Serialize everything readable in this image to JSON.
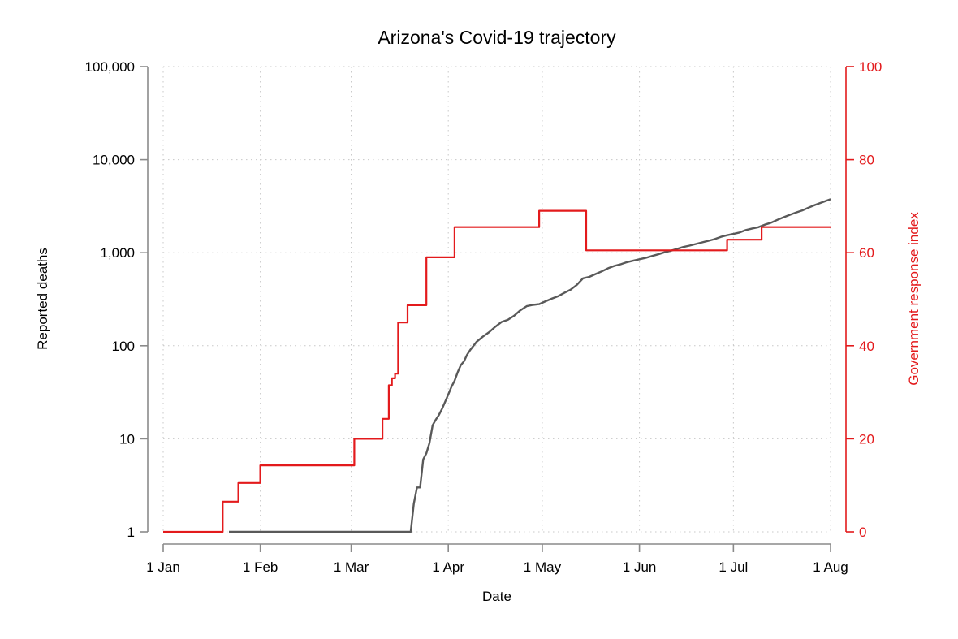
{
  "chart_data": {
    "type": "line",
    "title": "Arizona's Covid-19 trajectory",
    "xlabel": "Date",
    "x_ticks": [
      {
        "label": "1 Jan",
        "date": "2020-01-01"
      },
      {
        "label": "1 Feb",
        "date": "2020-02-01"
      },
      {
        "label": "1 Mar",
        "date": "2020-03-01"
      },
      {
        "label": "1 Apr",
        "date": "2020-04-01"
      },
      {
        "label": "1 May",
        "date": "2020-05-01"
      },
      {
        "label": "1 Jun",
        "date": "2020-06-01"
      },
      {
        "label": "1 Jul",
        "date": "2020-07-01"
      },
      {
        "label": "1 Aug",
        "date": "2020-08-01"
      }
    ],
    "xlim": [
      "2020-01-01",
      "2020-08-01"
    ],
    "y_left": {
      "label": "Reported deaths",
      "scale": "log",
      "ylim": [
        1,
        100000
      ],
      "ticks": [
        {
          "label": "1",
          "value": 1
        },
        {
          "label": "10",
          "value": 10
        },
        {
          "label": "100",
          "value": 100
        },
        {
          "label": "1,000",
          "value": 1000
        },
        {
          "label": "10,000",
          "value": 10000
        },
        {
          "label": "100,000",
          "value": 100000
        }
      ],
      "color": "#8a8a8a"
    },
    "y_right": {
      "label": "Government response index",
      "scale": "linear",
      "ylim": [
        0,
        100
      ],
      "ticks": [
        {
          "label": "0",
          "value": 0
        },
        {
          "label": "20",
          "value": 20
        },
        {
          "label": "40",
          "value": 40
        },
        {
          "label": "60",
          "value": 60
        },
        {
          "label": "80",
          "value": 80
        },
        {
          "label": "100",
          "value": 100
        }
      ],
      "color": "#e31a1c"
    },
    "grid": true,
    "series": [
      {
        "axis": "left",
        "color": "#595959",
        "points": [
          [
            "2020-01-22",
            1
          ],
          [
            "2020-03-20",
            1
          ],
          [
            "2020-03-21",
            2
          ],
          [
            "2020-03-22",
            3
          ],
          [
            "2020-03-23",
            3
          ],
          [
            "2020-03-24",
            6
          ],
          [
            "2020-03-25",
            7
          ],
          [
            "2020-03-26",
            9
          ],
          [
            "2020-03-27",
            14
          ],
          [
            "2020-03-28",
            16
          ],
          [
            "2020-03-29",
            18
          ],
          [
            "2020-03-30",
            21
          ],
          [
            "2020-03-31",
            25
          ],
          [
            "2020-04-01",
            30
          ],
          [
            "2020-04-02",
            36
          ],
          [
            "2020-04-03",
            42
          ],
          [
            "2020-04-04",
            52
          ],
          [
            "2020-04-05",
            62
          ],
          [
            "2020-04-06",
            68
          ],
          [
            "2020-04-07",
            80
          ],
          [
            "2020-04-08",
            90
          ],
          [
            "2020-04-10",
            110
          ],
          [
            "2020-04-12",
            125
          ],
          [
            "2020-04-14",
            140
          ],
          [
            "2020-04-16",
            160
          ],
          [
            "2020-04-18",
            180
          ],
          [
            "2020-04-20",
            190
          ],
          [
            "2020-04-22",
            210
          ],
          [
            "2020-04-24",
            240
          ],
          [
            "2020-04-26",
            266
          ],
          [
            "2020-04-28",
            275
          ],
          [
            "2020-04-30",
            280
          ],
          [
            "2020-05-02",
            300
          ],
          [
            "2020-05-04",
            320
          ],
          [
            "2020-05-06",
            340
          ],
          [
            "2020-05-08",
            370
          ],
          [
            "2020-05-10",
            400
          ],
          [
            "2020-05-12",
            450
          ],
          [
            "2020-05-14",
            530
          ],
          [
            "2020-05-16",
            550
          ],
          [
            "2020-05-18",
            590
          ],
          [
            "2020-05-20",
            630
          ],
          [
            "2020-05-22",
            680
          ],
          [
            "2020-05-24",
            720
          ],
          [
            "2020-05-26",
            750
          ],
          [
            "2020-05-28",
            790
          ],
          [
            "2020-05-30",
            820
          ],
          [
            "2020-06-01",
            850
          ],
          [
            "2020-06-03",
            880
          ],
          [
            "2020-06-05",
            920
          ],
          [
            "2020-06-07",
            960
          ],
          [
            "2020-06-09",
            1010
          ],
          [
            "2020-06-11",
            1050
          ],
          [
            "2020-06-13",
            1100
          ],
          [
            "2020-06-15",
            1150
          ],
          [
            "2020-06-17",
            1190
          ],
          [
            "2020-06-19",
            1240
          ],
          [
            "2020-06-21",
            1290
          ],
          [
            "2020-06-23",
            1340
          ],
          [
            "2020-06-25",
            1400
          ],
          [
            "2020-06-27",
            1480
          ],
          [
            "2020-06-29",
            1540
          ],
          [
            "2020-07-01",
            1590
          ],
          [
            "2020-07-03",
            1650
          ],
          [
            "2020-07-05",
            1750
          ],
          [
            "2020-07-07",
            1820
          ],
          [
            "2020-07-09",
            1880
          ],
          [
            "2020-07-11",
            2000
          ],
          [
            "2020-07-13",
            2100
          ],
          [
            "2020-07-15",
            2250
          ],
          [
            "2020-07-17",
            2400
          ],
          [
            "2020-07-19",
            2550
          ],
          [
            "2020-07-21",
            2700
          ],
          [
            "2020-07-23",
            2850
          ],
          [
            "2020-07-25",
            3050
          ],
          [
            "2020-07-27",
            3250
          ],
          [
            "2020-07-29",
            3450
          ],
          [
            "2020-07-31",
            3650
          ],
          [
            "2020-08-01",
            3750
          ]
        ]
      },
      {
        "axis": "right",
        "color": "#e31a1c",
        "step": true,
        "points": [
          [
            "2020-01-01",
            0
          ],
          [
            "2020-01-20",
            6.5
          ],
          [
            "2020-01-25",
            10.5
          ],
          [
            "2020-02-01",
            14.3
          ],
          [
            "2020-03-02",
            20
          ],
          [
            "2020-03-11",
            24.3
          ],
          [
            "2020-03-13",
            31.5
          ],
          [
            "2020-03-14",
            33
          ],
          [
            "2020-03-15",
            34
          ],
          [
            "2020-03-16",
            45
          ],
          [
            "2020-03-19",
            48.7
          ],
          [
            "2020-03-25",
            59
          ],
          [
            "2020-04-03",
            65.5
          ],
          [
            "2020-04-30",
            69
          ],
          [
            "2020-05-15",
            60.5
          ],
          [
            "2020-06-29",
            62.8
          ],
          [
            "2020-07-10",
            65.5
          ],
          [
            "2020-08-01",
            65.5
          ]
        ]
      }
    ]
  }
}
